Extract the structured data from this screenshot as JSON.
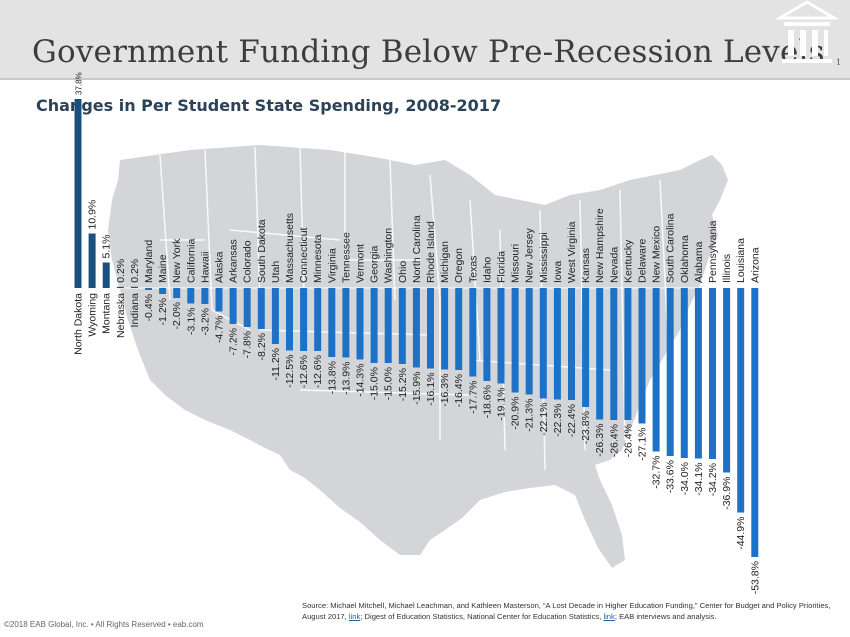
{
  "header": {
    "title": "Government Funding Below Pre-Recession Levels",
    "page_number": "1"
  },
  "footer": {
    "copyright": "©2018 EAB Global, Inc. • All Rights Reserved • eab.com",
    "source_part1": "Source: Michael Mitchell, Michael Leachman, and Kathleen Masterson, “A Lost Decade in Higher Education Funding,” Center for Budget and Policy Priorities, August 2017,",
    "link1": "link",
    "source_part2": "; Digest of Education Statistics, National Center for Education Statistics,",
    "link2": "link",
    "source_part3": "; EAB interviews and analysis."
  },
  "colors": {
    "bar_positive": "#1b4f7c",
    "bar_negative": "#1d72c8",
    "map": "#d4d5d8",
    "header_bg": "#e3e3e4"
  },
  "chart_data": {
    "type": "bar",
    "title": "Changes in Per Student State Spending, 2008-2017",
    "unit": "%",
    "categories": [
      "North Dakota",
      "Wyoming",
      "Montana",
      "Nebraska",
      "Indiana",
      "Maryland",
      "Maine",
      "New York",
      "California",
      "Hawaii",
      "Alaska",
      "Arkansas",
      "Colorado",
      "South Dakota",
      "Utah",
      "Massachusetts",
      "Connecticut",
      "Minnesota",
      "Virginia",
      "Tennessee",
      "Vermont",
      "Georgia",
      "Washington",
      "Ohio",
      "North Carolina",
      "Rhode Island",
      "Michigan",
      "Oregon",
      "Texas",
      "Idaho",
      "Florida",
      "Missouri",
      "New Jersey",
      "Mississippi",
      "Iowa",
      "West Virginia",
      "Kansas",
      "New Hampshire",
      "Nevada",
      "Kentucky",
      "Delaware",
      "New Mexico",
      "South Carolina",
      "Oklahoma",
      "Alabama",
      "Pennsylvania",
      "Illinois",
      "Louisiana",
      "Arizona"
    ],
    "values": [
      37.8,
      10.9,
      5.1,
      0.2,
      0.2,
      -0.4,
      -1.2,
      -2.0,
      -3.1,
      -3.2,
      -4.7,
      -7.2,
      -7.8,
      -8.2,
      -11.2,
      -12.5,
      -12.6,
      -12.6,
      -13.8,
      -13.9,
      -14.3,
      -15.0,
      -15.0,
      -15.2,
      -15.9,
      -16.1,
      -16.3,
      -16.4,
      -17.7,
      -18.6,
      -19.1,
      -20.9,
      -21.3,
      -22.1,
      -22.3,
      -22.4,
      -23.8,
      -26.3,
      -26.4,
      -26.4,
      -27.1,
      -32.7,
      -33.6,
      -34.0,
      -34.1,
      -34.2,
      -36.9,
      -44.9,
      -53.8
    ],
    "value_labels": [
      "37.8%",
      "10.9%",
      "5.1%",
      "0.2%",
      "0.2%",
      "-0.4%",
      "-1.2%",
      "-2.0%",
      "-3.1%",
      "-3.2%",
      "-4.7%",
      "-7.2%",
      "-7.8%",
      "-8.2%",
      "-11.2%",
      "-12.5%",
      "-12.6%",
      "-12.6%",
      "-13.8%",
      "-13.9%",
      "-14.3%",
      "-15.0%",
      "-15.0%",
      "-15.2%",
      "-15.9%",
      "-16.1%",
      "-16.3%",
      "-16.4%",
      "-17.7%",
      "-18.6%",
      "-19.1%",
      "-20.9%",
      "-21.3%",
      "-22.1%",
      "-22.3%",
      "-22.4%",
      "-23.8%",
      "-26.3%",
      "-26.4%",
      "-26.4%",
      "-27.1%",
      "-32.7%",
      "-33.6%",
      "-34.0%",
      "-34.1%",
      "-34.2%",
      "-36.9%",
      "-44.9%",
      "-53.8%"
    ],
    "ylim": [
      -55,
      40
    ]
  }
}
